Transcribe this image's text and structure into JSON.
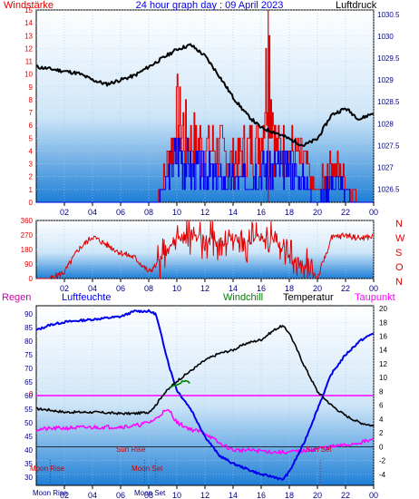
{
  "colors": {
    "wind": "#e00000",
    "pressure": "#000000",
    "humidity": "#0000ee",
    "windchill": "#008000",
    "temperature": "#000000",
    "dewpoint": "#ff00ff",
    "rain": "#cc00aa",
    "sky_top": "#ffffff",
    "sky_bottom": "#1e7fd6"
  },
  "labels": {
    "title": "24 hour graph day : 09 April 2023",
    "wind_title": "Windstärke",
    "pressure_title": "Luftdruck",
    "rain": "Regen",
    "humidity": "Luftfeuchte",
    "windchill": "Windchill",
    "temperature": "Temperatur",
    "dewpoint": "Taupunkt",
    "compass": [
      "N",
      "W",
      "S",
      "O",
      "N"
    ],
    "zero_marker": "0",
    "sun_rise": "Sun Rise",
    "sun_set": "Sun Set",
    "moon_rise": "Moon Rise",
    "moon_set": "Moon Set",
    "moon_rise_bottom": "Moon Rise",
    "moon_set_bottom": "Moon Set"
  },
  "chart_data": [
    {
      "type": "line",
      "x_ticks": [
        "02",
        "04",
        "06",
        "08",
        "10",
        "12",
        "14",
        "16",
        "18",
        "20",
        "22",
        "00"
      ],
      "y_left": {
        "label": "Windstärke",
        "ticks": [
          0,
          1,
          2,
          3,
          4,
          5,
          6,
          7,
          8,
          9,
          10,
          11,
          12,
          13,
          14,
          15
        ],
        "ylim": [
          0,
          15
        ]
      },
      "y_right": {
        "label": "Luftdruck",
        "ticks": [
          "1026.5",
          "1027",
          "1027.5",
          "1028",
          "1028.5",
          "1029",
          "1029.5",
          "1030",
          "1030.5"
        ],
        "ylim": [
          1026.2,
          1030.6
        ]
      },
      "series": [
        {
          "name": "Luftdruck",
          "x": [
            0,
            1,
            2,
            3,
            4,
            5,
            6,
            7,
            8,
            9,
            10,
            11,
            12,
            13,
            14,
            15,
            16,
            17,
            18,
            19,
            20,
            21,
            22,
            23,
            24
          ],
          "values": [
            1029.3,
            1029.25,
            1029.2,
            1029.15,
            1029.0,
            1028.9,
            1029.0,
            1029.1,
            1029.3,
            1029.5,
            1029.7,
            1029.8,
            1029.55,
            1029.1,
            1028.6,
            1028.2,
            1027.9,
            1027.8,
            1027.65,
            1027.5,
            1027.65,
            1028.2,
            1028.35,
            1028.1,
            1028.25
          ]
        },
        {
          "name": "Windstärke",
          "x": [
            0,
            8.5,
            9,
            10,
            11,
            12,
            13,
            14,
            15,
            16,
            16.5,
            17,
            18,
            19,
            19.5,
            20,
            21,
            22,
            23,
            24
          ],
          "values": [
            0,
            0,
            2,
            8,
            6,
            5,
            5,
            4,
            5,
            6,
            15,
            5,
            5,
            4,
            2,
            1,
            4,
            2,
            0,
            0
          ]
        },
        {
          "name": "Windstärke Mittel",
          "x": [
            0,
            8.5,
            9,
            10,
            11,
            12,
            13,
            14,
            15,
            16,
            17,
            18,
            19,
            19.5,
            20,
            21,
            22,
            23,
            24
          ],
          "values": [
            0,
            0,
            1,
            5,
            3,
            3,
            2,
            2,
            2,
            3,
            3,
            3,
            2,
            1,
            0,
            2,
            1,
            0,
            0
          ]
        }
      ]
    },
    {
      "type": "line",
      "x_ticks": [
        "02",
        "04",
        "06",
        "08",
        "10",
        "12",
        "14",
        "16",
        "18",
        "20",
        "22",
        "00"
      ],
      "y_left": {
        "ticks": [
          0,
          90,
          180,
          270,
          360
        ],
        "ylim": [
          0,
          360
        ]
      },
      "series": [
        {
          "name": "Windrichtung",
          "x": [
            0,
            1,
            2,
            3,
            4,
            5,
            6,
            7,
            8,
            9,
            10,
            11,
            12,
            13,
            14,
            15,
            16,
            17,
            18,
            19,
            20,
            21,
            22,
            23,
            24
          ],
          "values": [
            0,
            0,
            40,
            180,
            260,
            210,
            160,
            130,
            40,
            120,
            250,
            270,
            240,
            220,
            250,
            230,
            260,
            250,
            120,
            80,
            0,
            250,
            270,
            250,
            260
          ]
        }
      ]
    },
    {
      "type": "line",
      "x_ticks": [
        "02",
        "04",
        "06",
        "08",
        "10",
        "12",
        "14",
        "16",
        "18",
        "20",
        "22",
        "00"
      ],
      "y_left": {
        "label": "Luftfeuchte",
        "ticks": [
          30,
          35,
          40,
          45,
          50,
          55,
          60,
          65,
          70,
          75,
          80,
          85,
          90
        ],
        "ylim": [
          27,
          93
        ]
      },
      "y_right": {
        "label": "Temperatur",
        "ticks": [
          -4,
          -2,
          0,
          2,
          4,
          6,
          8,
          10,
          12,
          14,
          16,
          18,
          20
        ],
        "ylim": [
          -5.6,
          20.4
        ]
      },
      "series": [
        {
          "name": "Luftfeuchte",
          "axis": "left",
          "x": [
            0,
            1,
            2,
            4,
            6,
            7,
            8,
            8.5,
            9,
            9.5,
            10,
            11,
            12,
            13,
            14,
            15,
            16,
            17,
            17.5,
            18,
            19,
            20,
            21,
            22,
            23,
            24
          ],
          "values": [
            84,
            86,
            87,
            88,
            89,
            91,
            91,
            90,
            80,
            70,
            62,
            55,
            45,
            38,
            35,
            33,
            31,
            30,
            29,
            32,
            42,
            55,
            68,
            75,
            80,
            83
          ]
        },
        {
          "name": "Temperatur",
          "axis": "right",
          "x": [
            0,
            1,
            2,
            4,
            6,
            7,
            8,
            8.5,
            9,
            9.5,
            10,
            11,
            12,
            13,
            14,
            15,
            16,
            17,
            17.5,
            18,
            19,
            20,
            21,
            22,
            23,
            24
          ],
          "values": [
            5.5,
            5.3,
            5.0,
            5.0,
            4.8,
            4.8,
            5.0,
            6.0,
            7.5,
            8.5,
            9.5,
            11.0,
            12.5,
            13.5,
            14.0,
            15.0,
            15.5,
            17.0,
            17.5,
            16.5,
            12.0,
            8.0,
            6.0,
            4.5,
            3.5,
            3.0
          ]
        },
        {
          "name": "Windchill",
          "axis": "right",
          "x": [
            9.5,
            10,
            10.5,
            11
          ],
          "values": [
            8.5,
            9.0,
            9.5,
            9.2
          ]
        },
        {
          "name": "Taupunkt",
          "axis": "right",
          "x": [
            0,
            1,
            2,
            4,
            6,
            7,
            8,
            8.5,
            9,
            9.5,
            10,
            11,
            12,
            13,
            14,
            15,
            16,
            17,
            18,
            19,
            20,
            21,
            22,
            23,
            24
          ],
          "values": [
            2.5,
            2.6,
            2.7,
            2.8,
            2.9,
            3.0,
            3.5,
            4.0,
            5.0,
            5.2,
            3.5,
            2.5,
            2.0,
            0.5,
            -0.5,
            -0.5,
            -0.6,
            -0.8,
            -0.8,
            -0.6,
            -0.3,
            0.0,
            0.2,
            0.6,
            1.0
          ]
        }
      ],
      "annotations": [
        {
          "label": "Sun Rise",
          "x": 8.5
        },
        {
          "label": "Sun Set",
          "x": 20.2
        },
        {
          "label": "Moon Rise",
          "x": 1.0
        },
        {
          "label": "Moon Set",
          "x": 7.7
        }
      ]
    }
  ]
}
